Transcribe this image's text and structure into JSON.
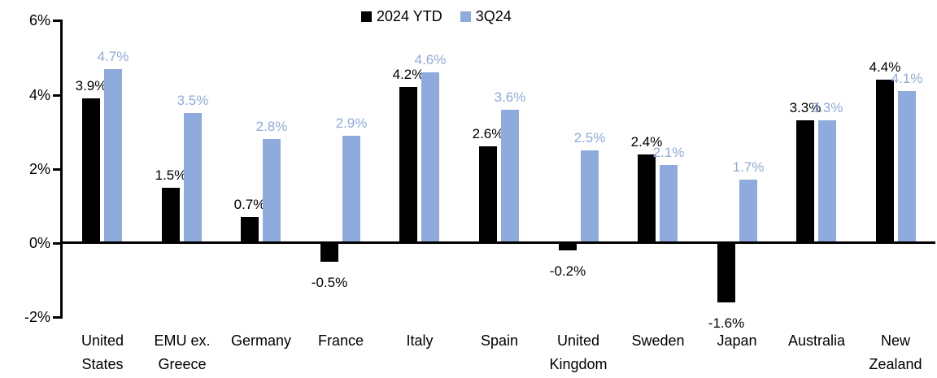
{
  "chart_data": {
    "type": "bar",
    "title": "",
    "categories": [
      "United States",
      "EMU ex. Greece",
      "Germany",
      "France",
      "Italy",
      "Spain",
      "United Kingdom",
      "Sweden",
      "Japan",
      "Australia",
      "New Zealand"
    ],
    "category_label_lines": [
      [
        "United",
        "States"
      ],
      [
        "EMU ex.",
        "Greece"
      ],
      [
        "Germany"
      ],
      [
        "France"
      ],
      [
        "Italy"
      ],
      [
        "Spain"
      ],
      [
        "United",
        "Kingdom"
      ],
      [
        "Sweden"
      ],
      [
        "Japan"
      ],
      [
        "Australia"
      ],
      [
        "New",
        "Zealand"
      ]
    ],
    "series": [
      {
        "name": "2024 YTD",
        "color": "#000000",
        "values": [
          3.9,
          1.5,
          0.7,
          -0.5,
          4.2,
          2.6,
          -0.2,
          2.4,
          -1.6,
          3.3,
          4.4
        ],
        "labels": [
          "3.9%",
          "1.5%",
          "0.7%",
          "-0.5%",
          "4.2%",
          "2.6%",
          "-0.2%",
          "2.4%",
          "-1.6%",
          "3.3%",
          "4.4%"
        ]
      },
      {
        "name": "3Q24",
        "color": "#8FAADC",
        "values": [
          4.7,
          3.5,
          2.8,
          2.9,
          4.6,
          3.6,
          2.5,
          2.1,
          1.7,
          3.3,
          4.1
        ],
        "labels": [
          "4.7%",
          "3.5%",
          "2.8%",
          "2.9%",
          "4.6%",
          "3.6%",
          "2.5%",
          "2.1%",
          "1.7%",
          "3.3%",
          "4.1%"
        ]
      }
    ],
    "y_axis": {
      "min": -2,
      "max": 6,
      "tick_values": [
        6,
        4,
        2,
        0,
        -2
      ],
      "tick_labels": [
        "6%",
        "4%",
        "2%",
        "0%",
        "-2%"
      ]
    },
    "legend_position": "top-center",
    "grid": false,
    "axis_color": "#000000",
    "background_color": "#FFFFFF"
  }
}
